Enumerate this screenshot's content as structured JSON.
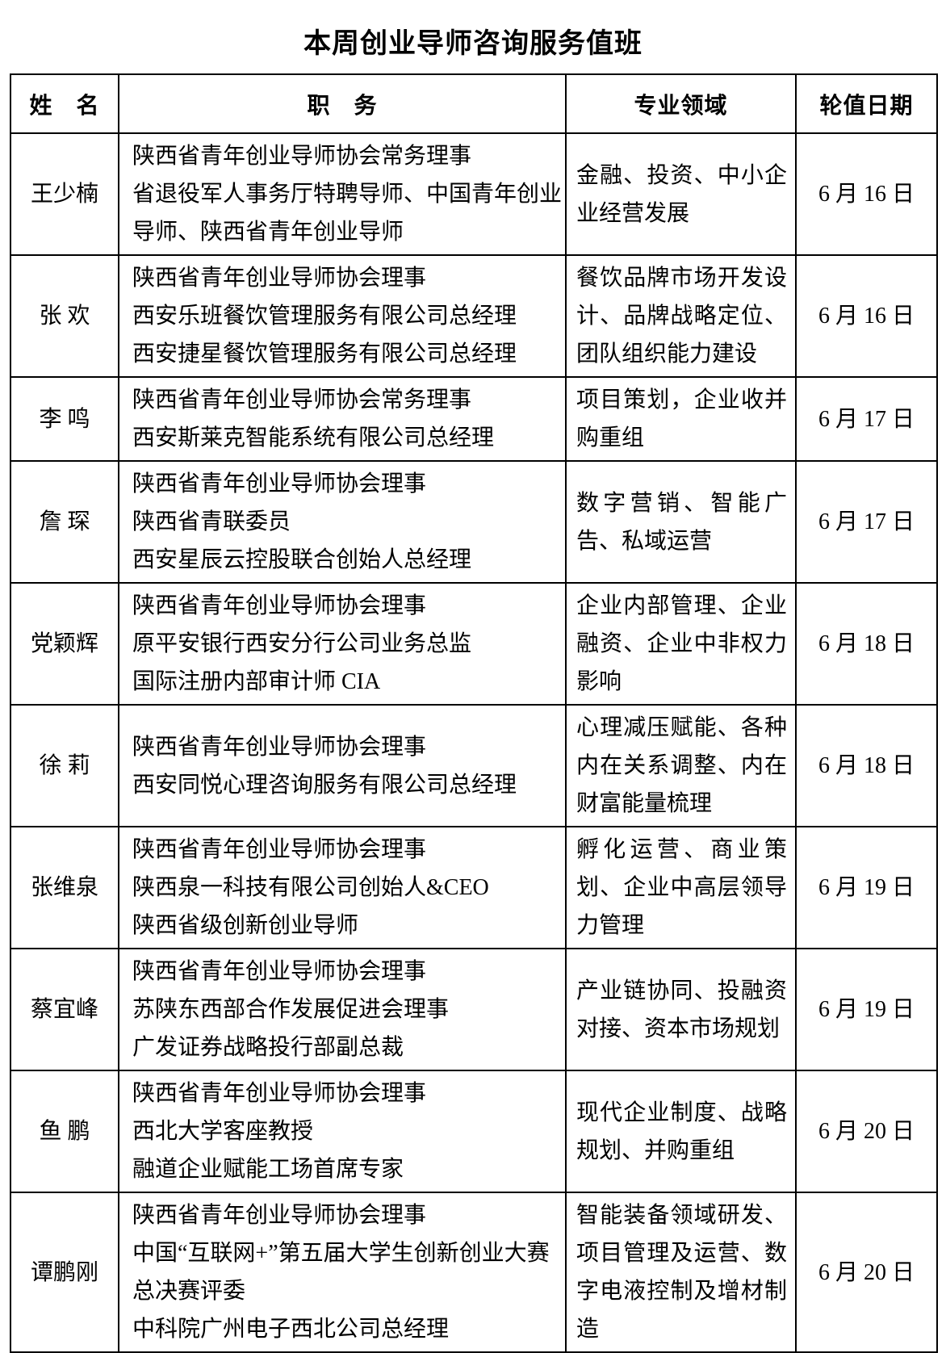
{
  "title": "本周创业导师咨询服务值班",
  "table": {
    "headers": [
      "姓　名",
      "职　务",
      "专业领域",
      "轮值日期"
    ],
    "rows": [
      {
        "name": "王少楠",
        "positions": [
          "陕西省青年创业导师协会常务理事",
          "省退役军人事务厅特聘导师、中国青年创业导师、陕西省青年创业导师"
        ],
        "specialty": "金融、投资、中小企业经营发展",
        "date": "6 月 16 日"
      },
      {
        "name": "张 欢",
        "positions": [
          "陕西省青年创业导师协会理事",
          "西安乐班餐饮管理服务有限公司总经理",
          "西安捷星餐饮管理服务有限公司总经理"
        ],
        "specialty": "餐饮品牌市场开发设计、品牌战略定位、团队组织能力建设",
        "date": "6 月 16 日"
      },
      {
        "name": "李 鸣",
        "positions": [
          "陕西省青年创业导师协会常务理事",
          "西安斯莱克智能系统有限公司总经理"
        ],
        "specialty": "项目策划，企业收并购重组",
        "date": "6 月 17 日"
      },
      {
        "name": "詹 琛",
        "positions": [
          "陕西省青年创业导师协会理事",
          "陕西省青联委员",
          "西安星辰云控股联合创始人总经理"
        ],
        "specialty": "数字营销、智能广告、私域运营",
        "date": "6 月 17 日"
      },
      {
        "name": "党颖辉",
        "positions": [
          "陕西省青年创业导师协会理事",
          "原平安银行西安分行公司业务总监",
          "国际注册内部审计师 CIA"
        ],
        "specialty": "企业内部管理、企业融资、企业中非权力影响",
        "date": "6 月 18 日"
      },
      {
        "name": "徐 莉",
        "positions": [
          "陕西省青年创业导师协会理事",
          "西安同悦心理咨询服务有限公司总经理"
        ],
        "specialty": "心理减压赋能、各种内在关系调整、内在财富能量梳理",
        "date": "6 月 18 日"
      },
      {
        "name": "张维泉",
        "positions": [
          "陕西省青年创业导师协会理事",
          "陕西泉一科技有限公司创始人&CEO",
          "陕西省级创新创业导师"
        ],
        "specialty": "孵化运营、商业策划、企业中高层领导力管理",
        "date": "6 月 19 日"
      },
      {
        "name": "蔡宜峰",
        "positions": [
          "陕西省青年创业导师协会理事",
          "苏陕东西部合作发展促进会理事",
          "广发证券战略投行部副总裁"
        ],
        "specialty": "产业链协同、投融资对接、资本市场规划",
        "date": "6 月 19 日"
      },
      {
        "name": "鱼 鹏",
        "positions": [
          "陕西省青年创业导师协会理事",
          "西北大学客座教授",
          "融道企业赋能工场首席专家"
        ],
        "specialty": "现代企业制度、战略规划、并购重组",
        "date": "6 月 20 日"
      },
      {
        "name": "谭鹏刚",
        "positions": [
          "陕西省青年创业导师协会理事",
          "中国“互联网+”第五届大学生创新创业大赛总决赛评委",
          "中科院广州电子西北公司总经理"
        ],
        "specialty": "智能装备领域研发、项目管理及运营、数字电液控制及增材制造",
        "date": "6 月 20 日"
      }
    ]
  }
}
